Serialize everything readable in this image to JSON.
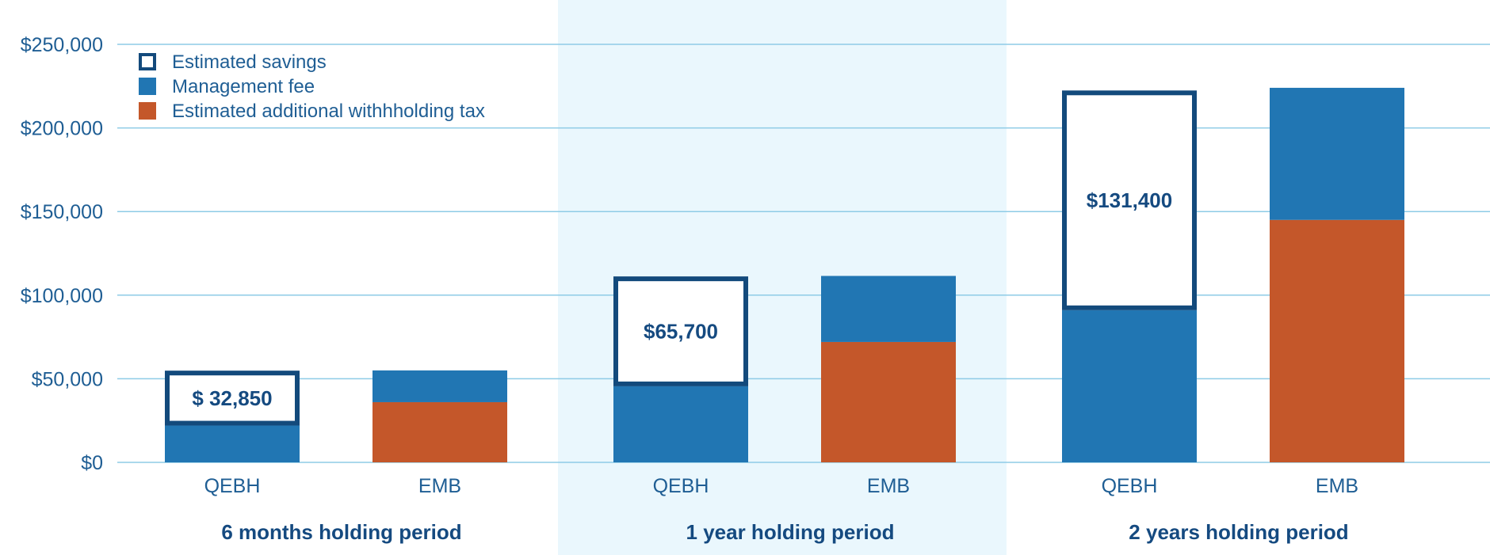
{
  "chart_data": {
    "type": "bar",
    "stacked": true,
    "groups": [
      {
        "label": "6 months holding period",
        "highlighted": false,
        "bars": [
          {
            "category": "QEBH",
            "management_fee": 22000,
            "estimated_additional_withholding_tax": 0,
            "estimated_savings": 32850,
            "savings_label": "$ 32,850"
          },
          {
            "category": "EMB",
            "management_fee": 19000,
            "estimated_additional_withholding_tax": 36000,
            "estimated_savings": 0,
            "savings_label": ""
          }
        ]
      },
      {
        "label": "1 year holding period",
        "highlighted": true,
        "bars": [
          {
            "category": "QEBH",
            "management_fee": 45500,
            "estimated_additional_withholding_tax": 0,
            "estimated_savings": 65700,
            "savings_label": "$65,700"
          },
          {
            "category": "EMB",
            "management_fee": 39500,
            "estimated_additional_withholding_tax": 72000,
            "estimated_savings": 0,
            "savings_label": ""
          }
        ]
      },
      {
        "label": "2 years holding period",
        "highlighted": false,
        "bars": [
          {
            "category": "QEBH",
            "management_fee": 91000,
            "estimated_additional_withholding_tax": 0,
            "estimated_savings": 131400,
            "savings_label": "$131,400"
          },
          {
            "category": "EMB",
            "management_fee": 79000,
            "estimated_additional_withholding_tax": 145000,
            "estimated_savings": 0,
            "savings_label": ""
          }
        ]
      }
    ],
    "legend": {
      "placement": "top-left",
      "items": [
        {
          "key": "estimated_savings",
          "label": "Estimated savings",
          "style": "outline"
        },
        {
          "key": "management_fee",
          "label": "Management fee",
          "style": "fill"
        },
        {
          "key": "estimated_additional_withholding_tax",
          "label": "Estimated additional withhholding tax",
          "style": "fill"
        }
      ]
    },
    "yticks": [
      0,
      50000,
      100000,
      150000,
      200000,
      250000
    ],
    "ytick_labels": [
      "$0",
      "$50,000",
      "$100,000",
      "$150,000",
      "$200,000",
      "$250,000"
    ],
    "ylim": [
      0,
      250000
    ],
    "grid": true,
    "colors": {
      "management_fee": "#2176b3",
      "estimated_additional_withholding_tax": "#c4572a",
      "estimated_savings": "#134a7c",
      "highlight_band": "#eaf7fd",
      "gridline": "#8ecbe6",
      "text": "#1f5e94"
    }
  }
}
